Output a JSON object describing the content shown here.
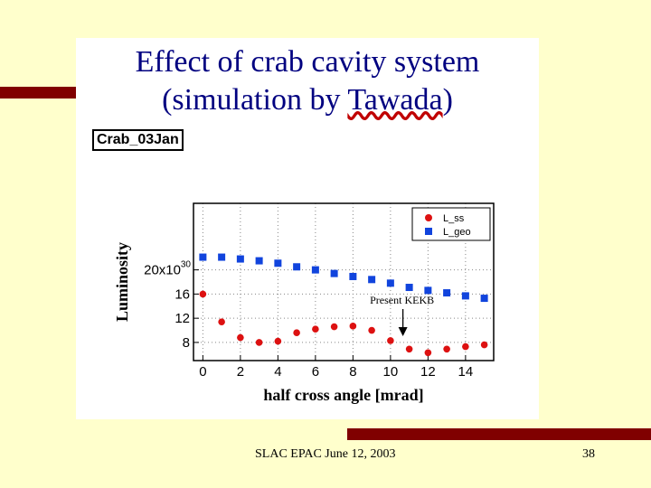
{
  "slide": {
    "title_line1": "Effect of crab cavity system",
    "title_line2_prefix": "(simulation by ",
    "title_line2_name": "Tawada",
    "title_line2_suffix": ")",
    "footer": "SLAC EPAC June 12, 2003",
    "page_number": "38",
    "colors": {
      "background": "#ffffcc",
      "accent_bar": "#800000",
      "title": "#000080"
    }
  },
  "chart_data": {
    "type": "scatter",
    "panel_label": "Crab_03Jan",
    "xlabel": "half cross angle [mrad]",
    "ylabel": "Luminosity",
    "xlim": [
      -0.5,
      15.5
    ],
    "ylim": [
      5,
      31
    ],
    "x_ticks": [
      0,
      2,
      4,
      6,
      8,
      10,
      12,
      14
    ],
    "y_ticks": [
      {
        "value": 8,
        "label": "8"
      },
      {
        "value": 12,
        "label": "12"
      },
      {
        "value": 16,
        "label": "16"
      },
      {
        "value": 20,
        "label": "20x10",
        "sup": "30"
      }
    ],
    "grid": "dotted",
    "legend_position": "top-right",
    "series": [
      {
        "name": "L_ss",
        "marker": "circle",
        "color": "#dd1111",
        "x": [
          0,
          1,
          2,
          3,
          4,
          5,
          6,
          7,
          8,
          9,
          10,
          11,
          12,
          13,
          14,
          15
        ],
        "y": [
          16.0,
          11.4,
          8.8,
          8.0,
          8.2,
          9.6,
          10.2,
          10.6,
          10.7,
          10.0,
          8.3,
          6.9,
          6.3,
          6.9,
          7.3,
          7.6
        ]
      },
      {
        "name": "L_geo",
        "marker": "square",
        "color": "#1144dd",
        "x": [
          0,
          1,
          2,
          3,
          4,
          5,
          6,
          7,
          8,
          9,
          10,
          11,
          12,
          13,
          14,
          15
        ],
        "y": [
          22.1,
          22.1,
          21.8,
          21.5,
          21.1,
          20.5,
          20.0,
          19.4,
          18.9,
          18.4,
          17.8,
          17.1,
          16.6,
          16.2,
          15.7,
          15.3
        ]
      }
    ],
    "annotation": {
      "text": "Present KEKB",
      "x": 11
    }
  }
}
